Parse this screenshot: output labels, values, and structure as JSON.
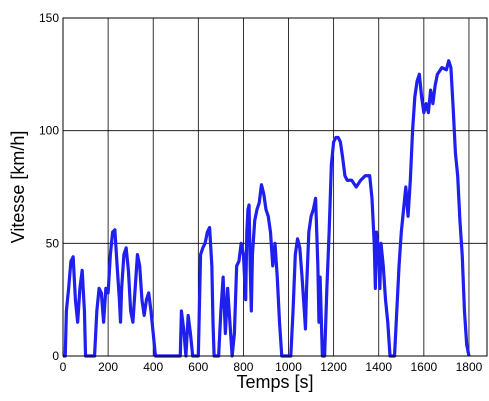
{
  "chart_data": {
    "type": "line",
    "xlabel": "Temps [s]",
    "ylabel": "Vitesse [km/h]",
    "x": [
      0,
      10,
      15,
      25,
      35,
      45,
      55,
      65,
      75,
      85,
      95,
      100,
      130,
      140,
      150,
      160,
      170,
      180,
      190,
      200,
      210,
      220,
      230,
      240,
      250,
      255,
      260,
      270,
      280,
      290,
      300,
      310,
      320,
      330,
      340,
      350,
      360,
      370,
      380,
      390,
      400,
      410,
      430,
      460,
      500,
      520,
      525,
      535,
      545,
      555,
      565,
      575,
      590,
      600,
      610,
      620,
      630,
      640,
      650,
      660,
      665,
      670,
      690,
      700,
      710,
      720,
      730,
      740,
      750,
      760,
      770,
      780,
      790,
      800,
      810,
      815,
      820,
      825,
      830,
      835,
      840,
      850,
      860,
      870,
      880,
      890,
      900,
      910,
      920,
      930,
      940,
      950,
      960,
      970,
      1000,
      1010,
      1020,
      1030,
      1040,
      1050,
      1060,
      1070,
      1075,
      1080,
      1090,
      1100,
      1110,
      1120,
      1130,
      1135,
      1140,
      1150,
      1160,
      1170,
      1180,
      1190,
      1200,
      1210,
      1220,
      1230,
      1240,
      1250,
      1260,
      1280,
      1300,
      1320,
      1340,
      1360,
      1370,
      1380,
      1385,
      1390,
      1400,
      1405,
      1410,
      1420,
      1430,
      1440,
      1450,
      1470,
      1480,
      1490,
      1500,
      1510,
      1520,
      1530,
      1535,
      1540,
      1550,
      1560,
      1570,
      1580,
      1590,
      1600,
      1610,
      1620,
      1630,
      1640,
      1650,
      1660,
      1680,
      1700,
      1710,
      1720,
      1730,
      1740,
      1750,
      1760,
      1770,
      1780,
      1790,
      1800
    ],
    "values": [
      0,
      0,
      20,
      30,
      42,
      44,
      25,
      15,
      30,
      38,
      20,
      0,
      0,
      0,
      20,
      30,
      28,
      15,
      30,
      28,
      45,
      55,
      56,
      40,
      25,
      15,
      30,
      45,
      48,
      38,
      20,
      15,
      30,
      45,
      40,
      25,
      18,
      25,
      28,
      20,
      10,
      0,
      0,
      0,
      0,
      0,
      20,
      12,
      0,
      18,
      10,
      0,
      0,
      0,
      45,
      48,
      50,
      55,
      57,
      40,
      15,
      0,
      0,
      20,
      35,
      10,
      30,
      15,
      0,
      10,
      40,
      42,
      50,
      45,
      25,
      55,
      65,
      67,
      40,
      20,
      45,
      60,
      65,
      68,
      76,
      72,
      65,
      62,
      55,
      40,
      50,
      35,
      15,
      0,
      0,
      0,
      20,
      45,
      52,
      48,
      35,
      20,
      12,
      30,
      55,
      62,
      65,
      70,
      40,
      15,
      35,
      0,
      0,
      30,
      55,
      85,
      95,
      97,
      97,
      95,
      88,
      80,
      78,
      78,
      75,
      78,
      80,
      80,
      70,
      50,
      30,
      55,
      45,
      30,
      50,
      40,
      25,
      15,
      0,
      0,
      20,
      40,
      55,
      65,
      75,
      62,
      70,
      78,
      100,
      115,
      122,
      125,
      115,
      108,
      112,
      108,
      118,
      112,
      120,
      125,
      128,
      127,
      131,
      128,
      110,
      90,
      80,
      60,
      45,
      20,
      5,
      0
    ],
    "color": "#1f1ff0",
    "xlim": [
      0,
      1880
    ],
    "xticks": [
      0,
      200,
      400,
      600,
      800,
      1000,
      1200,
      1400,
      1600,
      1800
    ],
    "ylim": [
      0,
      150
    ],
    "yticks": [
      0,
      50,
      100,
      150
    ],
    "grid": true
  }
}
